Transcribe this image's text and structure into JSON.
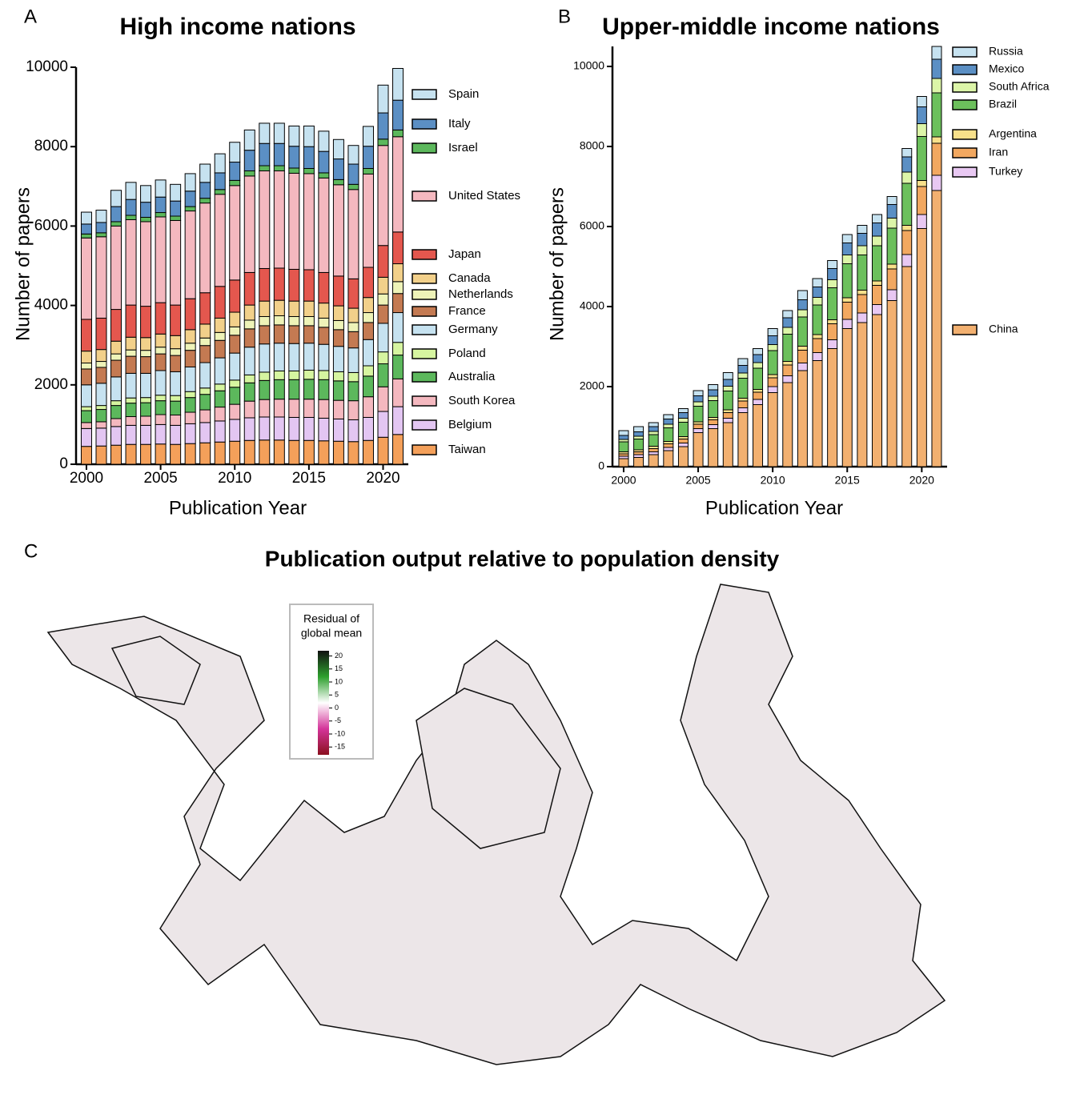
{
  "chart_data": [
    {
      "type": "stacked-bar",
      "panel_label": "A",
      "title": "High income nations",
      "y_label": "Number of papers",
      "x_label": "Publication Year",
      "x": [
        2000,
        2001,
        2002,
        2003,
        2004,
        2005,
        2006,
        2007,
        2008,
        2009,
        2010,
        2011,
        2012,
        2013,
        2014,
        2015,
        2016,
        2017,
        2018,
        2019,
        2020,
        2021
      ],
      "xlim": [
        1999.3,
        2021.7
      ],
      "xticks": [
        2000,
        2005,
        2010,
        2015,
        2020
      ],
      "ylim": [
        0,
        10000
      ],
      "yticks": [
        0,
        2000,
        4000,
        6000,
        8000,
        10000
      ],
      "grid": false,
      "legend": "right",
      "series": [
        {
          "name": "Taiwan",
          "color": "#f4a05a",
          "values": [
            450,
            460,
            480,
            500,
            500,
            510,
            500,
            520,
            540,
            560,
            580,
            600,
            610,
            610,
            600,
            600,
            590,
            580,
            570,
            600,
            680,
            750
          ]
        },
        {
          "name": "Belgium",
          "color": "#e3c6f2",
          "values": [
            450,
            450,
            470,
            480,
            480,
            490,
            480,
            500,
            510,
            530,
            550,
            570,
            580,
            580,
            580,
            580,
            570,
            560,
            550,
            580,
            650,
            700
          ]
        },
        {
          "name": "South Korea",
          "color": "#f4b8bf",
          "values": [
            150,
            160,
            200,
            220,
            230,
            250,
            260,
            290,
            320,
            350,
            380,
            420,
            440,
            450,
            460,
            460,
            470,
            470,
            480,
            520,
            620,
            700
          ]
        },
        {
          "name": "Australia",
          "color": "#5cb85c",
          "values": [
            300,
            310,
            330,
            340,
            340,
            350,
            350,
            370,
            390,
            410,
            430,
            460,
            480,
            490,
            490,
            500,
            500,
            490,
            480,
            520,
            580,
            600
          ]
        },
        {
          "name": "Poland",
          "color": "#d6f5a0",
          "values": [
            100,
            100,
            120,
            130,
            130,
            140,
            140,
            150,
            160,
            170,
            180,
            200,
            210,
            220,
            220,
            230,
            230,
            230,
            230,
            260,
            300,
            320
          ]
        },
        {
          "name": "Germany",
          "color": "#c6e2f0",
          "values": [
            550,
            560,
            600,
            620,
            610,
            620,
            600,
            620,
            640,
            660,
            680,
            700,
            710,
            700,
            690,
            680,
            660,
            640,
            620,
            660,
            720,
            750
          ]
        },
        {
          "name": "France",
          "color": "#c47a52",
          "values": [
            400,
            400,
            420,
            430,
            420,
            420,
            410,
            420,
            430,
            440,
            450,
            460,
            460,
            460,
            450,
            440,
            430,
            420,
            410,
            430,
            460,
            480
          ]
        },
        {
          "name": "Netherlands",
          "color": "#eef3b8",
          "values": [
            150,
            150,
            160,
            160,
            160,
            170,
            170,
            180,
            190,
            200,
            210,
            220,
            230,
            230,
            230,
            230,
            230,
            230,
            230,
            250,
            280,
            300
          ]
        },
        {
          "name": "Canada",
          "color": "#f2d08a",
          "values": [
            300,
            300,
            320,
            320,
            320,
            330,
            330,
            340,
            350,
            360,
            370,
            380,
            390,
            390,
            390,
            390,
            380,
            370,
            360,
            380,
            420,
            450
          ]
        },
        {
          "name": "Japan",
          "color": "#e4574e",
          "values": [
            800,
            790,
            800,
            810,
            790,
            790,
            770,
            780,
            790,
            800,
            810,
            820,
            820,
            810,
            800,
            790,
            770,
            750,
            740,
            760,
            800,
            800
          ]
        },
        {
          "name": "United States",
          "color": "#f4b8bf",
          "values": [
            2050,
            2050,
            2100,
            2150,
            2130,
            2160,
            2130,
            2210,
            2260,
            2320,
            2380,
            2430,
            2460,
            2450,
            2420,
            2420,
            2380,
            2300,
            2250,
            2350,
            2520,
            2400
          ]
        },
        {
          "name": "Israel",
          "color": "#5cb85c",
          "values": [
            100,
            100,
            110,
            110,
            110,
            110,
            110,
            110,
            120,
            120,
            130,
            130,
            130,
            130,
            130,
            130,
            130,
            130,
            130,
            140,
            160,
            170
          ]
        },
        {
          "name": "Italy",
          "color": "#5b8fc4",
          "values": [
            250,
            260,
            380,
            400,
            380,
            390,
            380,
            390,
            400,
            420,
            460,
            520,
            560,
            560,
            550,
            550,
            540,
            520,
            510,
            560,
            660,
            750
          ]
        },
        {
          "name": "Spain",
          "color": "#c6e2f0",
          "values": [
            300,
            310,
            410,
            430,
            420,
            430,
            420,
            440,
            460,
            480,
            500,
            510,
            510,
            510,
            510,
            520,
            510,
            490,
            470,
            500,
            700,
            800
          ]
        }
      ]
    },
    {
      "type": "stacked-bar",
      "panel_label": "B",
      "title": "Upper-middle income nations",
      "y_label": "Number of papers",
      "x_label": "Publication Year",
      "x": [
        2000,
        2001,
        2002,
        2003,
        2004,
        2005,
        2006,
        2007,
        2008,
        2009,
        2010,
        2011,
        2012,
        2013,
        2014,
        2015,
        2016,
        2017,
        2018,
        2019,
        2020,
        2021
      ],
      "xlim": [
        1999.25,
        2021.7
      ],
      "xticks": [
        2000,
        2005,
        2010,
        2015,
        2020
      ],
      "ylim": [
        0,
        10500
      ],
      "yticks": [
        0,
        2000,
        4000,
        6000,
        8000,
        10000
      ],
      "grid": false,
      "legend": "right",
      "series": [
        {
          "name": "China",
          "color": "#f2b070",
          "values": [
            200,
            230,
            300,
            400,
            500,
            850,
            950,
            1100,
            1350,
            1550,
            1850,
            2100,
            2400,
            2650,
            2950,
            3450,
            3600,
            3800,
            4150,
            5000,
            5950,
            6900
          ]
        },
        {
          "name": "Turkey",
          "color": "#e8c8f2",
          "values": [
            60,
            70,
            70,
            80,
            90,
            100,
            100,
            110,
            120,
            130,
            150,
            170,
            190,
            200,
            220,
            230,
            240,
            250,
            270,
            300,
            350,
            380
          ]
        },
        {
          "name": "Iran",
          "color": "#f2a860",
          "values": [
            60,
            70,
            80,
            90,
            100,
            110,
            120,
            140,
            170,
            180,
            220,
            270,
            320,
            350,
            400,
            430,
            460,
            480,
            520,
            600,
            700,
            800
          ]
        },
        {
          "name": "Argentina",
          "color": "#f7e08a",
          "values": [
            50,
            50,
            60,
            60,
            60,
            60,
            60,
            70,
            70,
            70,
            80,
            90,
            100,
            100,
            100,
            110,
            110,
            110,
            120,
            130,
            150,
            160
          ]
        },
        {
          "name": "Brazil",
          "color": "#6cc05c",
          "values": [
            250,
            270,
            290,
            340,
            360,
            390,
            420,
            470,
            500,
            530,
            600,
            680,
            730,
            740,
            800,
            850,
            880,
            880,
            900,
            1050,
            1100,
            1100
          ]
        },
        {
          "name": "South Africa",
          "color": "#dcf5a8",
          "values": [
            60,
            70,
            80,
            90,
            100,
            110,
            110,
            120,
            130,
            140,
            150,
            170,
            180,
            190,
            200,
            220,
            230,
            240,
            250,
            280,
            320,
            360
          ]
        },
        {
          "name": "Mexico",
          "color": "#5b8fc4",
          "values": [
            100,
            110,
            120,
            130,
            140,
            150,
            160,
            170,
            190,
            200,
            220,
            240,
            250,
            260,
            280,
            300,
            310,
            330,
            340,
            380,
            420,
            480
          ]
        },
        {
          "name": "Russia",
          "color": "#c6e2f0",
          "values": [
            120,
            130,
            100,
            110,
            100,
            130,
            130,
            170,
            170,
            150,
            180,
            180,
            230,
            210,
            200,
            210,
            200,
            210,
            200,
            210,
            260,
            320
          ]
        }
      ]
    }
  ],
  "map": {
    "panel_label": "C",
    "title": "Publication output relative to population density",
    "colorbar": {
      "title": [
        "Residual of",
        "global mean"
      ],
      "ticks": [
        20,
        15,
        10,
        5,
        0,
        -5,
        -10,
        -15
      ],
      "lim": [
        -18,
        22
      ],
      "colors": [
        "#8b0f1e",
        "#d4359a",
        "#ffffff",
        "#2ea02e",
        "#101010"
      ]
    }
  }
}
